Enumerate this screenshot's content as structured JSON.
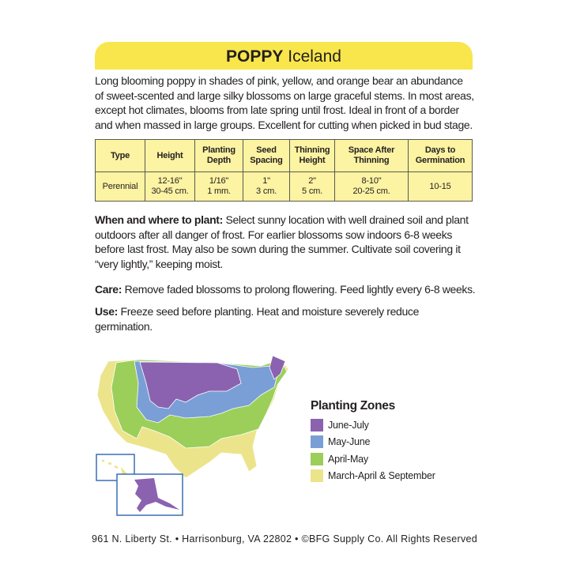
{
  "header": {
    "name": "POPPY",
    "variety": "Iceland"
  },
  "intro": "Long blooming poppy in shades of pink, yellow, and orange bear an abundance of sweet-scented and large silky blossoms on large graceful stems. In most areas, except hot climates, blooms from late spring until frost. Ideal in front of a border and when massed in large groups. Excellent for cutting when picked in bud stage.",
  "table": {
    "headers": [
      "Type",
      "Height",
      "Planting Depth",
      "Seed Spacing",
      "Thinning Height",
      "Space After Thinning",
      "Days to Germination"
    ],
    "row": [
      [
        "Perennial"
      ],
      [
        "12-16\"",
        "30-45 cm."
      ],
      [
        "1/16\"",
        "1 mm."
      ],
      [
        "1\"",
        "3 cm."
      ],
      [
        "2\"",
        "5 cm."
      ],
      [
        "8-10\"",
        "20-25 cm."
      ],
      [
        "10-15"
      ]
    ]
  },
  "sections": [
    {
      "label": "When and where to plant:",
      "text": " Select sunny location with well drained soil and plant outdoors after all danger of frost. For earlier blossoms sow indoors 6-8 weeks before last frost. May also be sown during the summer. Cultivate soil covering it “very lightly,” keeping moist."
    },
    {
      "label": "Care:",
      "text": " Remove faded blossoms to prolong flowering. Feed lightly every 6-8 weeks."
    },
    {
      "label": "Use:",
      "text": " Freeze seed before planting. Heat and moisture severely reduce germination."
    }
  ],
  "legend": {
    "title": "Planting Zones",
    "items": [
      {
        "label": "June-July",
        "color": "#8b62b0"
      },
      {
        "label": "May-June",
        "color": "#7a9fd6"
      },
      {
        "label": "April-May",
        "color": "#9bcf5a"
      },
      {
        "label": "March-April & September",
        "color": "#ece48a"
      }
    ]
  },
  "footer": "961 N. Liberty St. • Harrisonburg, VA 22802 • ©BFG Supply Co. All Rights Reserved"
}
